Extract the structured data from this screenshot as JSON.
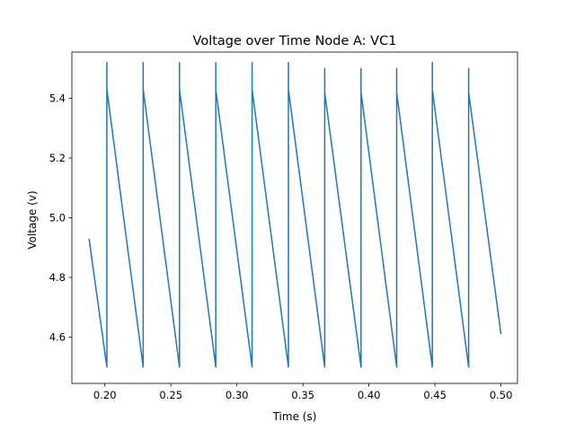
{
  "chart_data": {
    "type": "line",
    "title": "Voltage over Time Node A: VC1",
    "xlabel": "Time (s)",
    "ylabel": "Voltage (v)",
    "xlim": [
      0.175,
      0.5125
    ],
    "ylim": [
      4.445,
      5.555
    ],
    "grid": false,
    "legend": "none",
    "x_ticks": [
      0.2,
      0.25,
      0.3,
      0.35,
      0.4,
      0.45,
      0.5
    ],
    "x_tick_labels": [
      "0.20",
      "0.25",
      "0.30",
      "0.35",
      "0.40",
      "0.45",
      "0.50"
    ],
    "y_ticks": [
      4.6,
      4.8,
      5.0,
      5.2,
      5.4
    ],
    "y_tick_labels": [
      "4.6",
      "4.8",
      "5.0",
      "5.2",
      "5.4"
    ],
    "series": [
      {
        "color": "#1f77b4",
        "x": [
          0.188,
          0.2015,
          0.2015,
          0.2015,
          0.229,
          0.229,
          0.229,
          0.2565,
          0.2565,
          0.2565,
          0.284,
          0.284,
          0.284,
          0.3115,
          0.3115,
          0.3115,
          0.339,
          0.339,
          0.339,
          0.3665,
          0.3665,
          0.3665,
          0.394,
          0.394,
          0.394,
          0.421,
          0.421,
          0.421,
          0.448,
          0.448,
          0.448,
          0.4755,
          0.4755,
          0.4755,
          0.5
        ],
        "y": [
          4.93,
          4.5,
          5.52,
          5.43,
          4.5,
          5.52,
          5.43,
          4.5,
          5.52,
          5.43,
          4.5,
          5.52,
          5.43,
          4.5,
          5.52,
          5.43,
          4.5,
          5.52,
          5.43,
          4.5,
          5.5,
          5.42,
          4.5,
          5.5,
          5.42,
          4.5,
          5.5,
          5.42,
          4.5,
          5.52,
          5.43,
          4.5,
          5.5,
          5.42,
          4.61
        ]
      }
    ]
  }
}
